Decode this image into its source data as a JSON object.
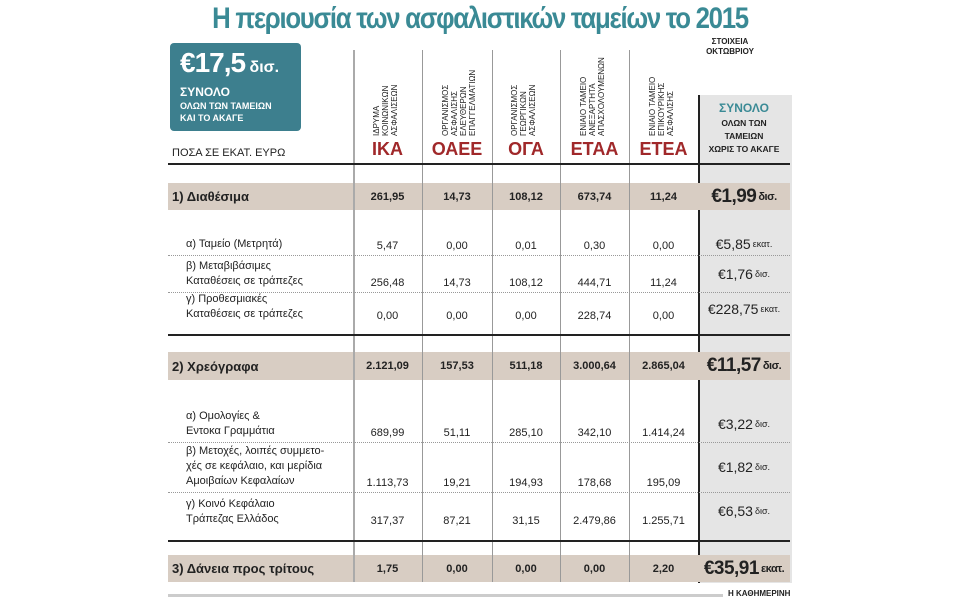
{
  "title": "Η περιουσία των ασφαλιστικών ταμείων το 2015",
  "period": [
    "ΣΤΟΙΧΕΙΑ",
    "ΟΚΤΩΒΡΙΟΥ"
  ],
  "total_box": {
    "amount": "€17,5",
    "unit": "δισ.",
    "line1": "ΣΥΝΟΛΟ",
    "line2": "ΟΛΩΝ ΤΩΝ ΤΑΜΕΙΩΝ",
    "line3": "ΚΑΙ ΤΟ ΑΚΑΓΕ"
  },
  "units_label": "ΠΟΣΑ ΣΕ ΕΚΑΤ. ΕΥΡΩ",
  "funds": [
    {
      "abbr": "ΙΚΑ",
      "full": "ΙΔΡΥΜΑ\nΚΟΙΝΩΝΙΚΩΝ\nΑΣΦΑΛΙΣΕΩΝ"
    },
    {
      "abbr": "ΟΑΕΕ",
      "full": "ΟΡΓΑΝΙΣΜΟΣ\nΑΣΦΑΛΙΣΗΣ\nΕΛΕΥΘΕΡΩΝ\nΕΠΑΓΓΕΛΜΑΤΙΩΝ"
    },
    {
      "abbr": "ΟΓΑ",
      "full": "ΟΡΓΑΝΙΣΜΟΣ\nΓΕΩΡΓΙΚΩΝ\nΑΣΦΑΛΙΣΕΩΝ"
    },
    {
      "abbr": "ΕΤΑΑ",
      "full": "ΕΝΙΑΙΟ ΤΑΜΕΙΟ\nΑΝΕΞΑΡΤΗΤΑ\nΑΠΑΣΧΟΛΟΥΜΕΝΩΝ"
    },
    {
      "abbr": "ΕΤΕΑ",
      "full": "ΕΝΙΑΙΟ ΤΑΜΕΙΟ\nΕΠΙΚΟΥΡΙΚΗΣ\nΑΣΦΑΛΙΣΗΣ"
    }
  ],
  "total_header": {
    "title": "ΣΥΝΟΛΟ",
    "lines": [
      "ΟΛΩΝ ΤΩΝ",
      "ΤΑΜΕΙΩΝ",
      "ΧΩΡΙΣ ΤΟ ΑΚΑΓΕ"
    ]
  },
  "rows": [
    {
      "type": "main",
      "label": "1) Διαθέσιμα",
      "values": [
        "261,95",
        "14,73",
        "108,12",
        "673,74",
        "11,24"
      ],
      "total": "€1,99",
      "total_unit": "δισ."
    },
    {
      "type": "sub",
      "label": "α) Ταμείο (Μετρητά)",
      "values": [
        "5,47",
        "0,00",
        "0,01",
        "0,30",
        "0,00"
      ],
      "total": "€5,85",
      "total_unit": "εκατ."
    },
    {
      "type": "sub",
      "label": "β) Μεταβιβάσιμες\nΚαταθέσεις σε τράπεζες",
      "values": [
        "256,48",
        "14,73",
        "108,12",
        "444,71",
        "11,24"
      ],
      "total": "€1,76",
      "total_unit": "δισ."
    },
    {
      "type": "sub",
      "label": "γ) Προθεσμιακές\nΚαταθέσεις σε τράπεζες",
      "values": [
        "0,00",
        "0,00",
        "0,00",
        "228,74",
        "0,00"
      ],
      "total": "€228,75",
      "total_unit": "εκατ."
    },
    {
      "type": "main",
      "label": "2) Χρεόγραφα",
      "values": [
        "2.121,09",
        "157,53",
        "511,18",
        "3.000,64",
        "2.865,04"
      ],
      "total": "€11,57",
      "total_unit": "δισ."
    },
    {
      "type": "sub",
      "label": "α) Ομολογίες &\nΕντοκα Γραμμάτια",
      "values": [
        "689,99",
        "51,11",
        "285,10",
        "342,10",
        "1.414,24"
      ],
      "total": "€3,22",
      "total_unit": "δισ."
    },
    {
      "type": "sub",
      "label": "β) Μετοχές, λοιπές συμμετο-\nχές σε κεφάλαιο, και μερίδια\nΑμοιβαίων Κεφαλαίων",
      "values": [
        "1.113,73",
        "19,21",
        "194,93",
        "178,68",
        "195,09"
      ],
      "total": "€1,82",
      "total_unit": "δισ."
    },
    {
      "type": "sub",
      "label": "γ) Κοινό Κεφάλαιο\nΤράπεζας Ελλάδος",
      "values": [
        "317,37",
        "87,21",
        "31,15",
        "2.479,86",
        "1.255,71"
      ],
      "total": "€6,53",
      "total_unit": "δισ."
    },
    {
      "type": "main",
      "label": "3) Δάνεια προς τρίτους",
      "values": [
        "1,75",
        "0,00",
        "0,00",
        "0,00",
        "2,20"
      ],
      "total": "€35,91",
      "total_unit": "εκατ."
    }
  ],
  "source": "Η ΚΑΘΗΜΕΡΙΝΗ"
}
